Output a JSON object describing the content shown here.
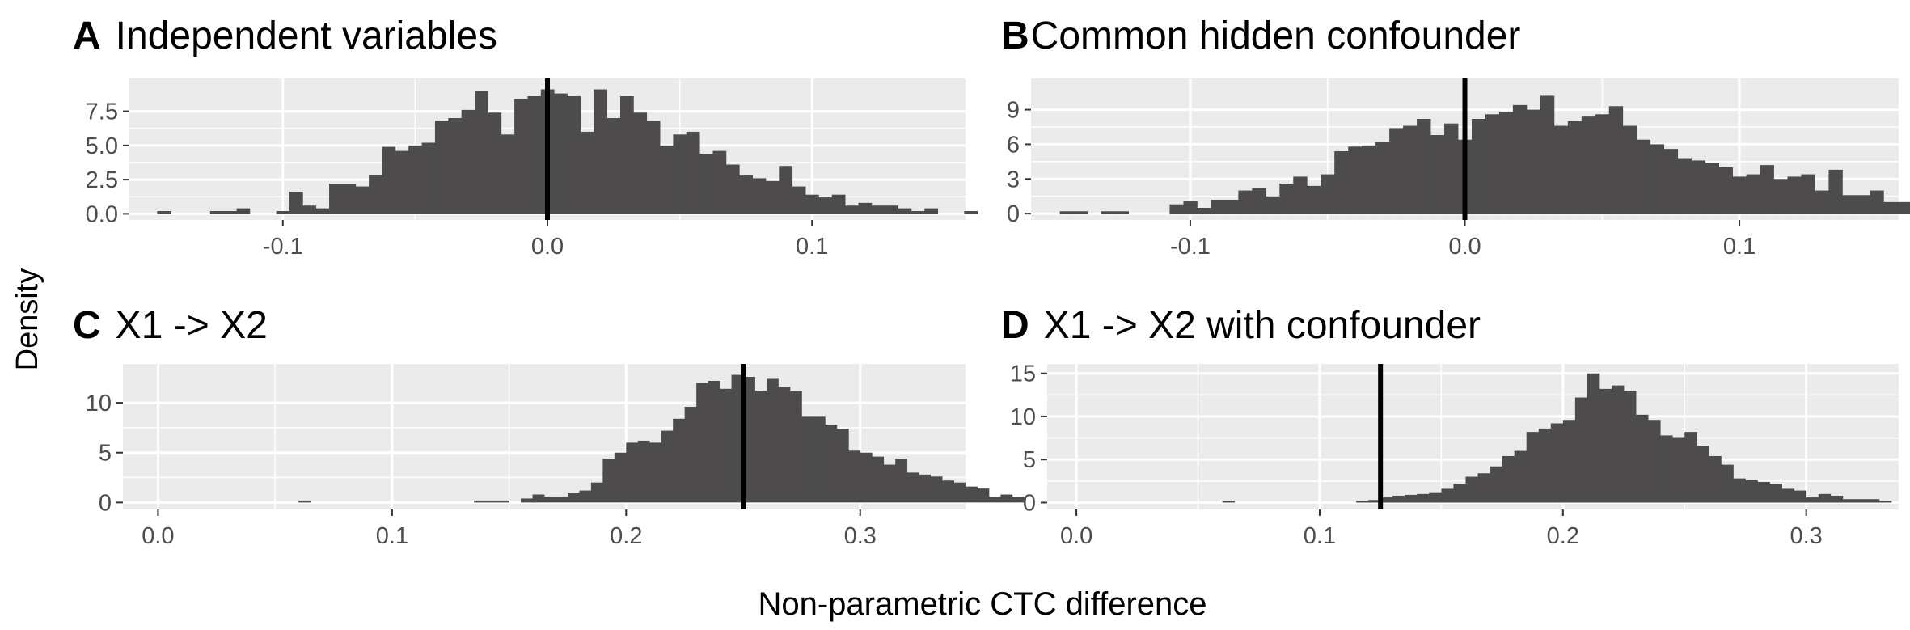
{
  "figure": {
    "ylabel": "Density",
    "xlabel": "Non-parametric CTC difference"
  },
  "chart_data": [
    {
      "type": "bar",
      "panel_letter": "A",
      "title": "Independent variables",
      "xlabel": "Non-parametric CTC difference",
      "ylabel": "Density",
      "xlim": [
        -0.158,
        0.158
      ],
      "ylim": [
        -0.45,
        9.9
      ],
      "x_ticks": [
        -0.1,
        0.0,
        0.1
      ],
      "x_tick_labels": [
        "-0.1",
        "0.0",
        "0.1"
      ],
      "y_ticks": [
        0,
        2.5,
        5,
        7.5
      ],
      "y_tick_labels": [
        "0.0",
        "2.5",
        "5.0",
        "7.5"
      ],
      "vline": 0.0,
      "bin_start": -0.1475,
      "bin_width": 0.005,
      "values": [
        0.2,
        0,
        0,
        0,
        0.2,
        0.2,
        0.4,
        0,
        0,
        0.2,
        1.6,
        0.6,
        0.4,
        2.2,
        2.2,
        2.0,
        2.8,
        4.9,
        4.6,
        5.0,
        5.2,
        6.8,
        7.0,
        7.6,
        9.0,
        7.4,
        5.8,
        8.4,
        8.6,
        9.1,
        8.8,
        8.6,
        6.0,
        9.1,
        7.0,
        8.6,
        7.4,
        6.8,
        5.0,
        5.8,
        6.0,
        4.4,
        4.6,
        3.6,
        2.8,
        2.6,
        2.4,
        3.5,
        2.0,
        1.4,
        1.2,
        1.4,
        0.6,
        0.8,
        0.6,
        0.6,
        0.4,
        0.2,
        0.4,
        0,
        0,
        0.2,
        0
      ]
    },
    {
      "type": "bar",
      "panel_letter": "B",
      "title": "Common hidden confounder",
      "xlabel": "Non-parametric CTC difference",
      "ylabel": "Density",
      "xlim": [
        -0.158,
        0.158
      ],
      "ylim": [
        -0.55,
        11.7
      ],
      "x_ticks": [
        -0.1,
        0.0,
        0.1
      ],
      "x_tick_labels": [
        "-0.1",
        "0.0",
        "0.1"
      ],
      "y_ticks": [
        0,
        3,
        6,
        9
      ],
      "y_tick_labels": [
        "0",
        "3",
        "6",
        "9"
      ],
      "vline": 0.0,
      "bin_start": -0.1475,
      "bin_width": 0.005,
      "values": [
        0.2,
        0.2,
        0,
        0.2,
        0.2,
        0,
        0,
        0,
        0.8,
        1.1,
        0.5,
        1.2,
        1.2,
        2.0,
        2.2,
        1.5,
        2.6,
        3.2,
        2.4,
        3.4,
        5.4,
        5.8,
        5.9,
        6.2,
        7.4,
        7.6,
        8.2,
        6.8,
        7.8,
        6.4,
        8.2,
        8.6,
        8.8,
        9.4,
        9.0,
        10.2,
        7.6,
        8.0,
        8.4,
        8.6,
        9.3,
        7.6,
        6.4,
        6.0,
        5.6,
        4.8,
        4.6,
        4.4,
        4.0,
        3.2,
        3.4,
        4.2,
        3.0,
        3.2,
        3.4,
        2.0,
        3.8,
        1.6,
        1.6,
        2.0,
        1.0,
        1.0,
        0.6,
        0.6,
        1.2,
        0.4,
        0.2,
        0,
        0.2,
        0,
        0,
        0.2,
        0.2,
        0
      ]
    },
    {
      "type": "bar",
      "panel_letter": "C",
      "title": "X1 -> X2",
      "xlabel": "Non-parametric CTC difference",
      "ylabel": "Density",
      "xlim": [
        -0.015,
        0.345
      ],
      "ylim": [
        -0.7,
        13.9
      ],
      "x_ticks": [
        0.0,
        0.1,
        0.2,
        0.3
      ],
      "x_tick_labels": [
        "0.0",
        "0.1",
        "0.2",
        "0.3"
      ],
      "y_ticks": [
        0,
        5,
        10
      ],
      "y_tick_labels": [
        "0",
        "5",
        "10"
      ],
      "vline": 0.25,
      "bin_start": 0.06,
      "bin_width": 0.005,
      "values": [
        0.2,
        0,
        0,
        0,
        0,
        0,
        0,
        0,
        0,
        0,
        0,
        0,
        0,
        0,
        0,
        0.2,
        0.2,
        0.2,
        0,
        0.4,
        0.8,
        0.6,
        0.6,
        1.0,
        1.2,
        2.0,
        4.4,
        5.0,
        6.0,
        6.2,
        6.0,
        7.2,
        8.4,
        9.6,
        12.0,
        12.2,
        11.4,
        12.8,
        12.6,
        11.2,
        12.4,
        11.6,
        11.2,
        8.6,
        8.6,
        7.8,
        7.4,
        5.2,
        5.0,
        4.6,
        3.8,
        4.4,
        3.0,
        2.8,
        2.6,
        2.2,
        2.0,
        1.6,
        1.4,
        0.6,
        0.8,
        0.6,
        0
      ]
    },
    {
      "type": "bar",
      "panel_letter": "D",
      "title": "X1 -> X2 with confounder",
      "xlabel": "Non-parametric CTC difference",
      "ylabel": "Density",
      "xlim": [
        -0.012,
        0.338
      ],
      "ylim": [
        -0.8,
        16.1
      ],
      "x_ticks": [
        0.0,
        0.1,
        0.2,
        0.3
      ],
      "x_tick_labels": [
        "0.0",
        "0.1",
        "0.2",
        "0.3"
      ],
      "y_ticks": [
        0,
        5,
        10,
        15
      ],
      "y_tick_labels": [
        "0",
        "5",
        "10",
        "15"
      ],
      "vline": 0.125,
      "bin_start": 0.06,
      "bin_width": 0.005,
      "values": [
        0.2,
        0,
        0,
        0,
        0,
        0,
        0,
        0,
        0,
        0,
        0,
        0.2,
        0.3,
        0.6,
        0.8,
        0.9,
        1.0,
        1.2,
        1.6,
        2.2,
        3.0,
        3.4,
        4.2,
        5.4,
        6.0,
        8.2,
        8.6,
        9.2,
        9.6,
        12.2,
        15.0,
        13.2,
        13.6,
        13.0,
        10.2,
        9.6,
        7.8,
        7.6,
        8.2,
        6.6,
        5.4,
        4.4,
        2.8,
        2.6,
        2.4,
        2.2,
        1.6,
        1.4,
        0.6,
        1.0,
        0.8,
        0.4,
        0.4,
        0.4,
        0.2,
        0,
        0,
        0,
        0.2,
        0.2,
        0
      ]
    }
  ]
}
